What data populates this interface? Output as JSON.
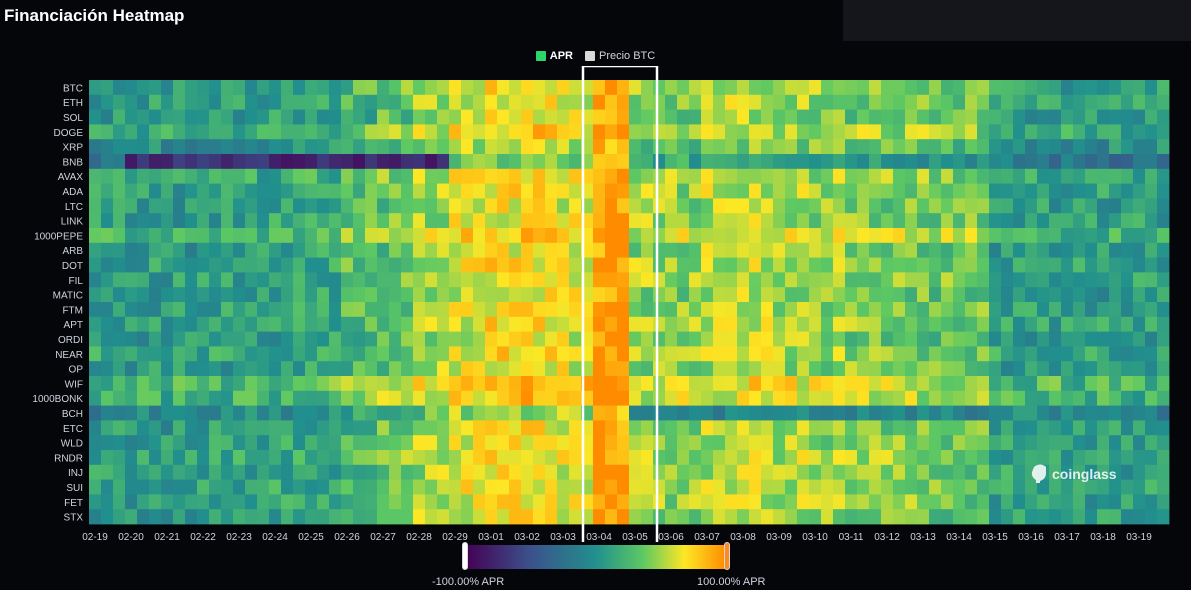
{
  "title": "Financiación Heatmap",
  "legend": {
    "apr": "APR",
    "btc": "Precio BTC",
    "apr_color": "#2fd56a",
    "btc_color": "#d9d9d9"
  },
  "colorbar": {
    "min_label": "-100.00% APR",
    "max_label": "100.00% APR",
    "min": -100,
    "max": 100
  },
  "watermark": "coinglass",
  "chart_data": {
    "type": "heatmap",
    "title": "Financiación Heatmap",
    "x_tick_labels": [
      "02-19",
      "02-20",
      "02-21",
      "02-22",
      "02-23",
      "02-24",
      "02-25",
      "02-26",
      "02-27",
      "02-28",
      "02-29",
      "03-01",
      "03-02",
      "03-03",
      "03-04",
      "03-05",
      "03-06",
      "03-07",
      "03-08",
      "03-09",
      "03-10",
      "03-11",
      "03-12",
      "03-13",
      "03-14",
      "03-15",
      "03-16",
      "03-17",
      "03-18",
      "03-19"
    ],
    "y_labels": [
      "BTC",
      "ETH",
      "SOL",
      "DOGE",
      "XRP",
      "BNB",
      "AVAX",
      "ADA",
      "LTC",
      "LINK",
      "1000PEPE",
      "ARB",
      "DOT",
      "FIL",
      "MATIC",
      "FTM",
      "APT",
      "ORDI",
      "NEAR",
      "OP",
      "WIF",
      "1000BONK",
      "BCH",
      "ETC",
      "WLD",
      "RNDR",
      "INJ",
      "SUI",
      "FET",
      "STX"
    ],
    "periods_per_day": 3,
    "value_unit": "% APR",
    "color_range": [
      -100,
      100
    ],
    "day_level": [
      8,
      6,
      6,
      9,
      10,
      12,
      14,
      26,
      34,
      48,
      60,
      66,
      68,
      62,
      95,
      45,
      42,
      52,
      54,
      48,
      44,
      40,
      40,
      36,
      34,
      10,
      9,
      8,
      8,
      8
    ],
    "row_offsets": [
      0,
      0,
      -5,
      8,
      -10,
      -30,
      5,
      2,
      -2,
      0,
      14,
      -3,
      2,
      0,
      -4,
      0,
      2,
      -4,
      4,
      -2,
      16,
      12,
      -18,
      -2,
      0,
      4,
      0,
      2,
      0,
      -2
    ],
    "highlight_range": [
      "03-04",
      "03-05"
    ],
    "series": [
      {
        "name": "APR",
        "color": "#2fd56a"
      },
      {
        "name": "Precio BTC",
        "color": "#d9d9d9"
      }
    ]
  }
}
